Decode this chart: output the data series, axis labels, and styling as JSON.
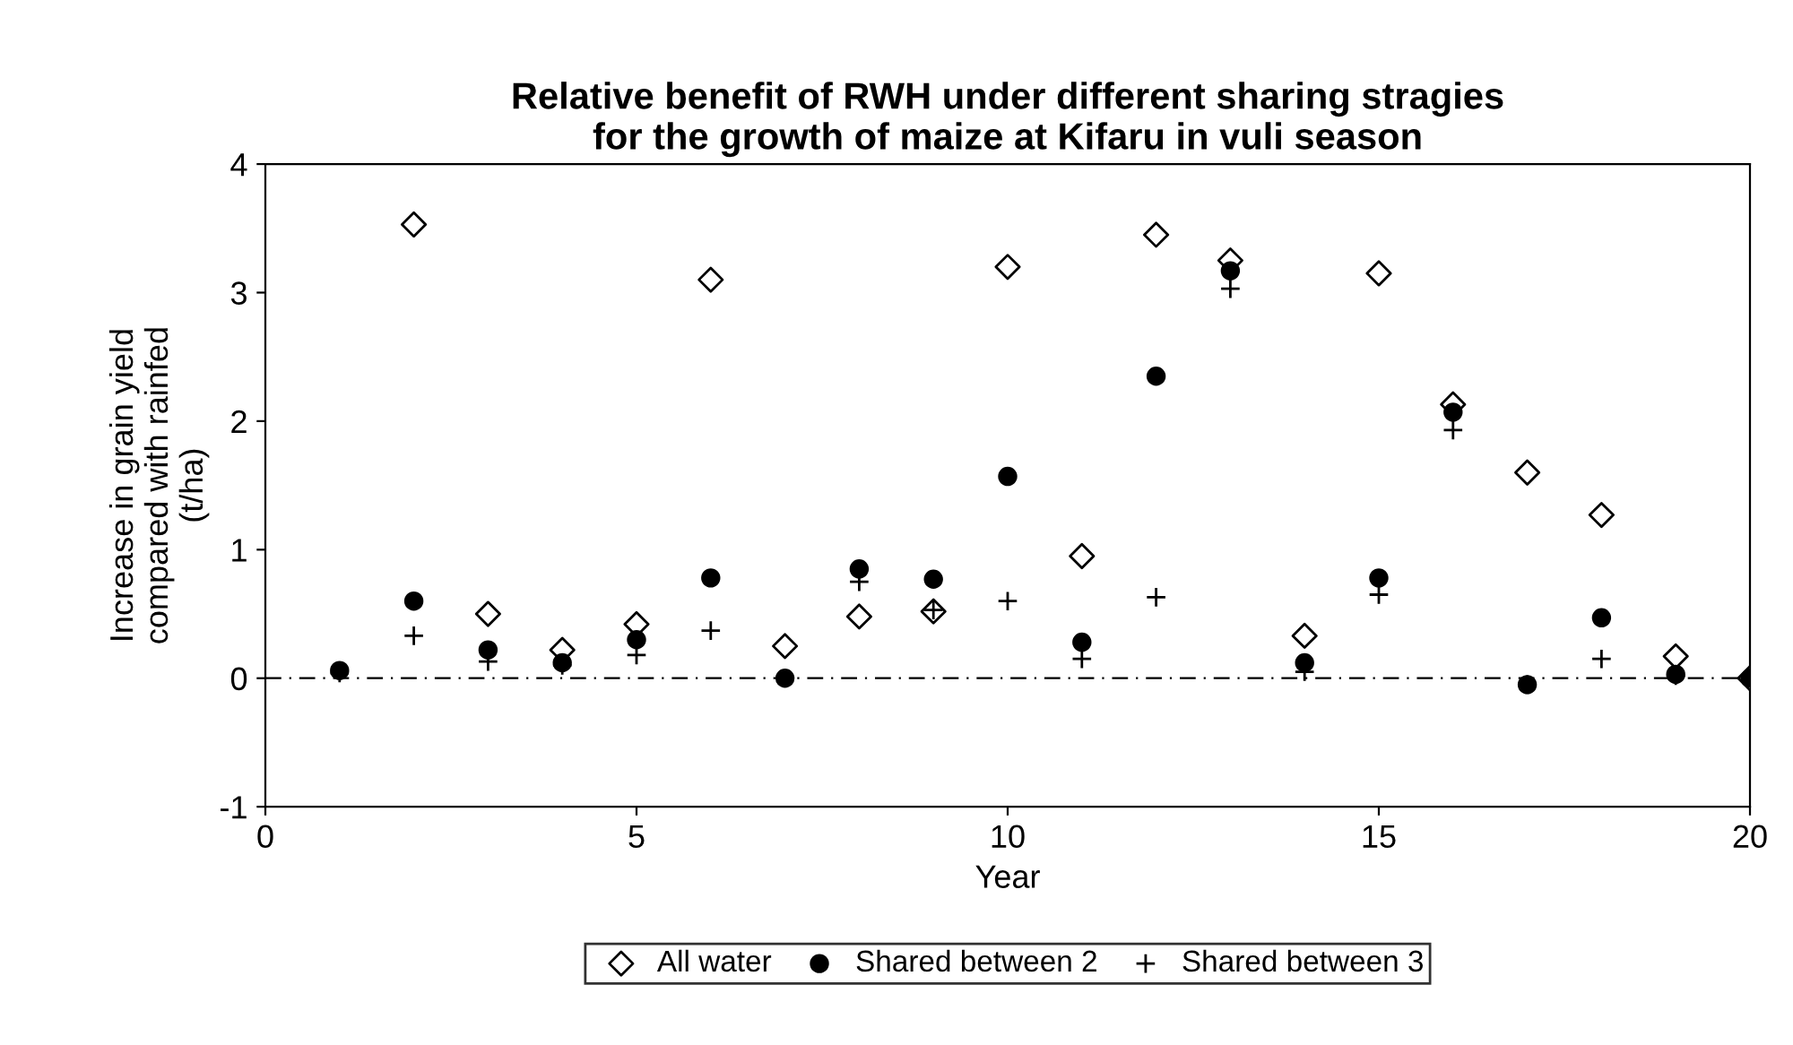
{
  "chart_data": {
    "type": "scatter",
    "title": "Relative benefit of RWH under different sharing stragies\nfor the growth of maize at Kifaru in vuli season",
    "xlabel": "Year",
    "ylabel": "Increase in grain yield\ncompared with rainfed\n(t/ha)",
    "x": [
      1,
      2,
      3,
      4,
      5,
      6,
      7,
      8,
      9,
      10,
      11,
      12,
      13,
      14,
      15,
      16,
      17,
      18,
      19,
      20
    ],
    "series": [
      {
        "name": "All water",
        "color": "#000000",
        "marker": "diamond",
        "values": [
          null,
          3.53,
          0.5,
          0.22,
          0.42,
          3.1,
          0.25,
          0.48,
          0.52,
          3.2,
          0.95,
          3.45,
          3.25,
          0.33,
          3.15,
          2.13,
          1.6,
          1.27,
          0.17,
          0
        ]
      },
      {
        "name": "Shared between 2",
        "color": "#000000",
        "marker": "circle",
        "values": [
          0.06,
          0.6,
          0.22,
          0.12,
          0.3,
          0.78,
          0,
          0.85,
          0.77,
          1.57,
          0.28,
          2.35,
          3.17,
          0.12,
          0.78,
          2.07,
          -0.05,
          0.47,
          0.03,
          0
        ]
      },
      {
        "name": "Shared between 3",
        "color": "#000000",
        "marker": "cross",
        "values": [
          0.04,
          0.33,
          0.13,
          0.1,
          0.18,
          0.37,
          0,
          0.75,
          0.53,
          0.6,
          0.15,
          0.63,
          3.03,
          0.05,
          0.65,
          1.93,
          -0.05,
          0.15,
          0.02,
          0
        ]
      }
    ],
    "xlim": [
      0,
      20
    ],
    "xticks": [
      0,
      5,
      10,
      15,
      20
    ],
    "ylim": [
      -1,
      4
    ],
    "yticks": [
      -1,
      0,
      1,
      2,
      3,
      4
    ],
    "ref_lines": [
      {
        "axis": "y",
        "value": 0,
        "label": null,
        "color": "#000000",
        "line_style": "dashed"
      }
    ],
    "grid": false,
    "legend": "bottom"
  }
}
